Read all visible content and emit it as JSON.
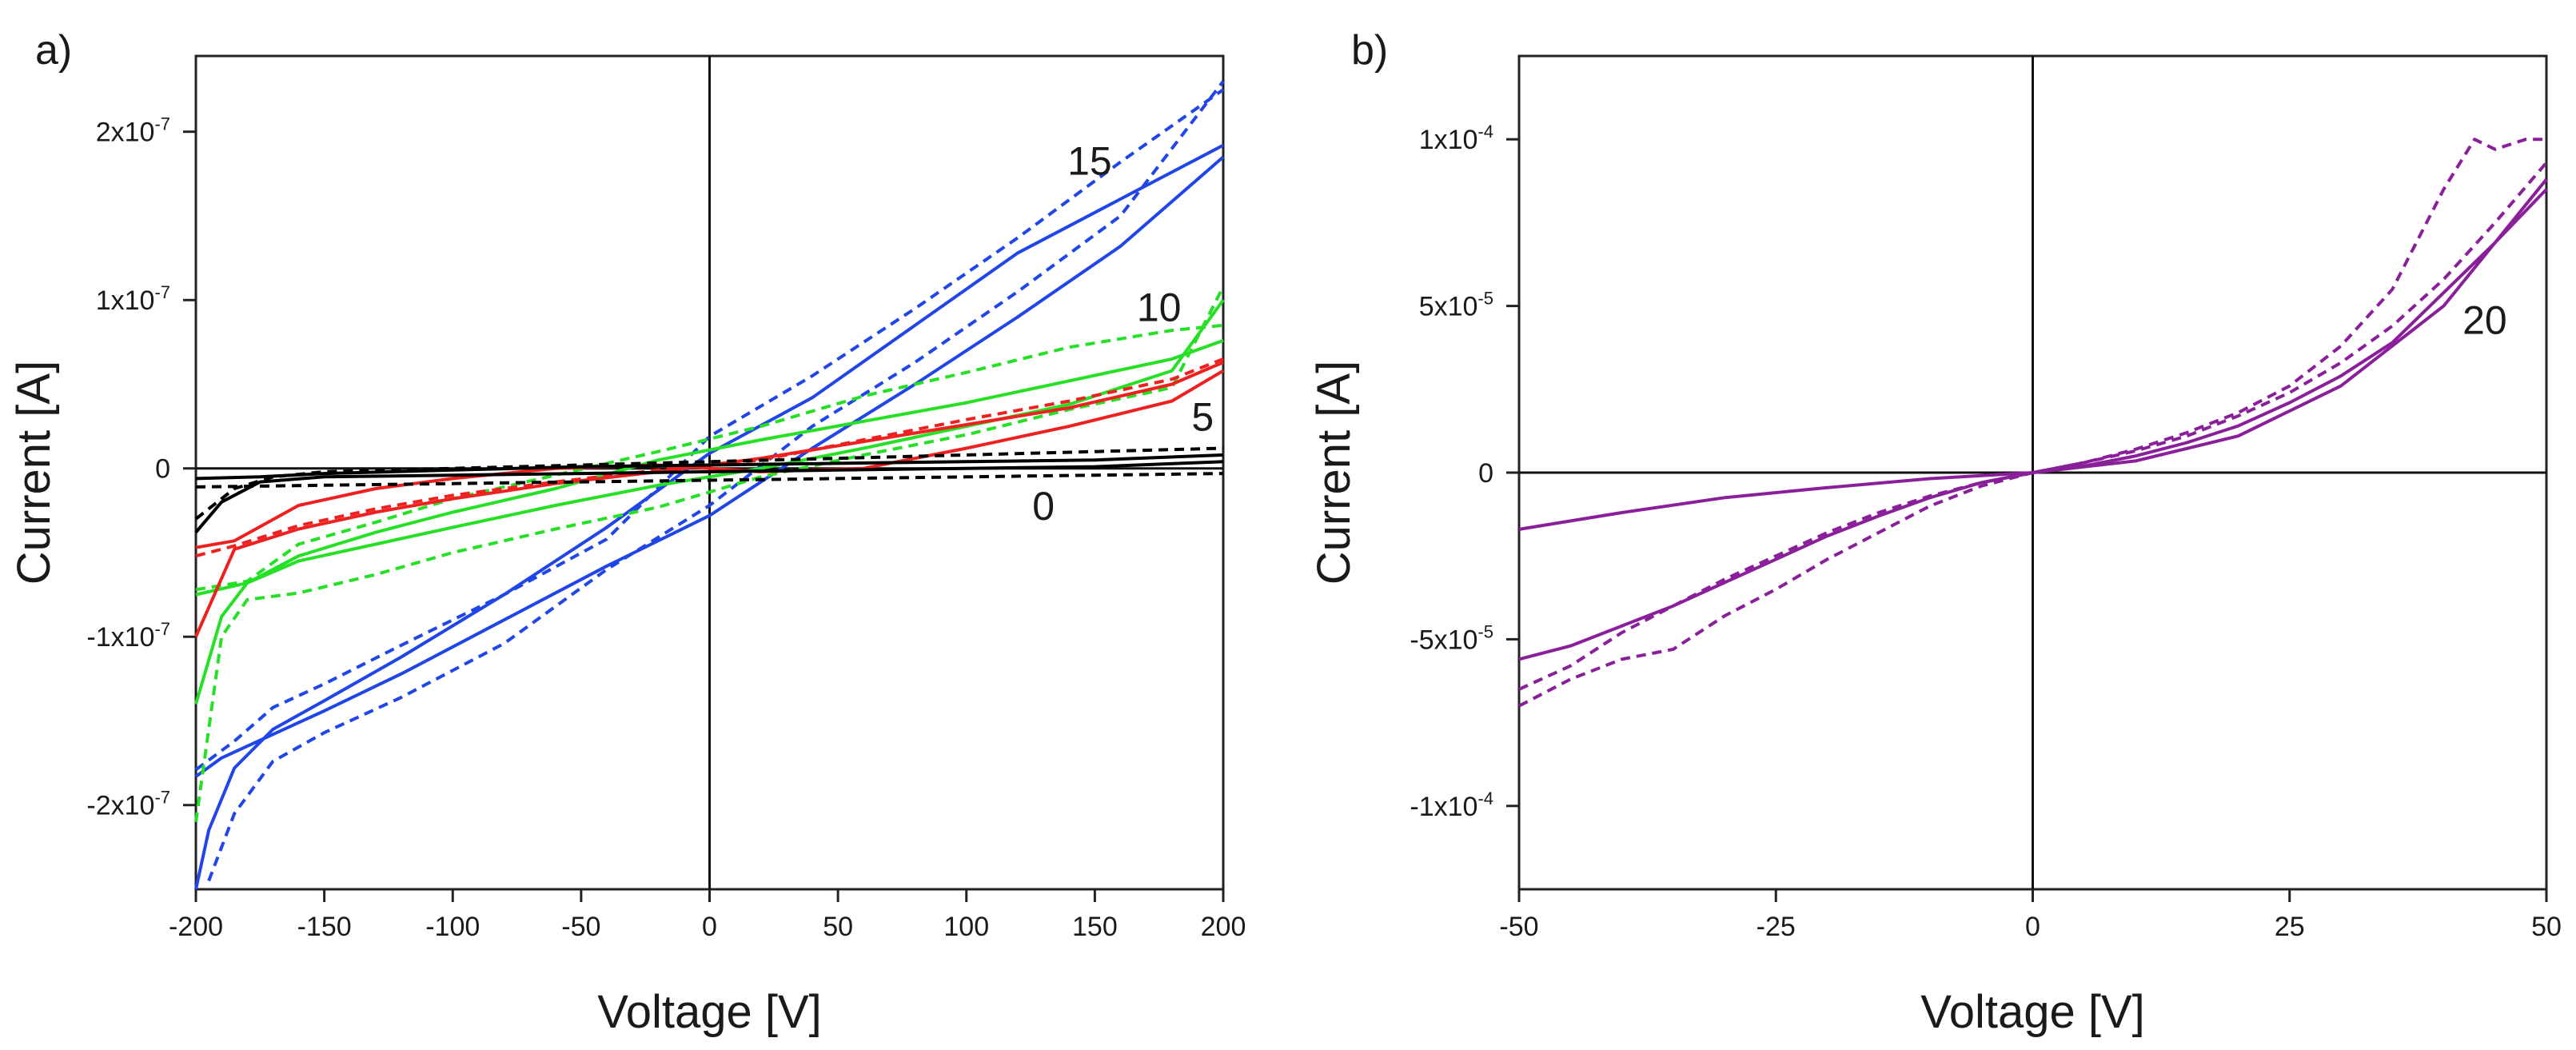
{
  "chart_data": [
    {
      "panel": "a)",
      "type": "line",
      "xlabel": "Voltage [V]",
      "ylabel": "Current [A]",
      "xlim": [
        -200,
        200
      ],
      "ylim": [
        -2.5e-07,
        2.45e-07
      ],
      "xticks": [
        -200,
        -150,
        -100,
        -50,
        0,
        50,
        100,
        150,
        200
      ],
      "yticks": [
        {
          "value": 2e-07,
          "mantissa": "2x10",
          "exp": "-7"
        },
        {
          "value": 1e-07,
          "mantissa": "1x10",
          "exp": "-7"
        },
        {
          "value": 0,
          "mantissa": "0",
          "exp": ""
        },
        {
          "value": -1e-07,
          "mantissa": "-1x10",
          "exp": "-7"
        },
        {
          "value": -2e-07,
          "mantissa": "-2x10",
          "exp": "-7"
        }
      ],
      "grid": false,
      "annotations": [
        {
          "text": "15",
          "x": 148,
          "y": 1.83e-07
        },
        {
          "text": "10",
          "x": 175,
          "y": 9.6e-08
        },
        {
          "text": "5",
          "x": 192,
          "y": 3.1e-08
        },
        {
          "text": "0",
          "x": 130,
          "y": -2.2e-08
        }
      ],
      "series": [
        {
          "color": "#2045e8",
          "style": "solid",
          "x": [
            -200,
            -190,
            -170,
            -150,
            -120,
            -80,
            -40,
            0,
            40,
            80,
            120,
            160,
            200
          ],
          "y": [
            -1.83e-07,
            -1.72e-07,
            -1.58e-07,
            -1.44e-07,
            -1.22e-07,
            -9e-08,
            -5.8e-08,
            -2.8e-08,
            1.2e-08,
            5e-08,
            9e-08,
            1.32e-07,
            1.85e-07
          ]
        },
        {
          "color": "#2045e8",
          "style": "solid",
          "x": [
            -200,
            -195,
            -185,
            -170,
            -150,
            -120,
            -80,
            -40,
            0,
            40,
            80,
            120,
            160,
            200
          ],
          "y": [
            -2.5e-07,
            -2.15e-07,
            -1.78e-07,
            -1.55e-07,
            -1.38e-07,
            -1.12e-07,
            -7.5e-08,
            -3.5e-08,
            9e-09,
            4.2e-08,
            8.5e-08,
            1.28e-07,
            1.6e-07,
            1.92e-07
          ]
        },
        {
          "color": "#2045e8",
          "style": "dashed",
          "x": [
            -195,
            -185,
            -170,
            -150,
            -120,
            -80,
            -40,
            0,
            40,
            80,
            120,
            160,
            200
          ],
          "y": [
            -2.45e-07,
            -2.05e-07,
            -1.74e-07,
            -1.57e-07,
            -1.36e-07,
            -1.04e-07,
            -6e-08,
            -2.2e-08,
            2.5e-08,
            6.3e-08,
            1.05e-07,
            1.5e-07,
            2.3e-07
          ]
        },
        {
          "color": "#2045e8",
          "style": "dashed",
          "x": [
            -200,
            -185,
            -170,
            -150,
            -120,
            -80,
            -40,
            0,
            40,
            80,
            120,
            160,
            200
          ],
          "y": [
            -1.79e-07,
            -1.62e-07,
            -1.42e-07,
            -1.28e-07,
            -1.05e-07,
            -7.5e-08,
            -4.2e-08,
            1.9e-08,
            5.5e-08,
            9.5e-08,
            1.37e-07,
            1.82e-07,
            2.25e-07
          ]
        },
        {
          "color": "#25e025",
          "style": "solid",
          "x": [
            -200,
            -190,
            -180,
            -160,
            -130,
            -100,
            -60,
            -20,
            20,
            60,
            100,
            140,
            180,
            200
          ],
          "y": [
            -1.4e-07,
            -8.8e-08,
            -6.8e-08,
            -5.5e-08,
            -4.5e-08,
            -3.5e-08,
            -2.2e-08,
            -1e-08,
            0,
            1.2e-08,
            2.5e-08,
            3.8e-08,
            5.8e-08,
            1e-07
          ]
        },
        {
          "color": "#25e025",
          "style": "solid",
          "x": [
            -200,
            -180,
            -160,
            -130,
            -100,
            -60,
            -20,
            20,
            60,
            100,
            140,
            180,
            200
          ],
          "y": [
            -7.5e-08,
            -6.8e-08,
            -5.2e-08,
            -3.8e-08,
            -2.6e-08,
            -1.2e-08,
            5e-09,
            1.7e-08,
            2.8e-08,
            3.9e-08,
            5.2e-08,
            6.5e-08,
            7.6e-08
          ]
        },
        {
          "color": "#25e025",
          "style": "dashed",
          "x": [
            -200,
            -190,
            -180,
            -160,
            -130,
            -100,
            -60,
            -20,
            20,
            60,
            100,
            140,
            180,
            200
          ],
          "y": [
            -2.1e-07,
            -1e-07,
            -7.8e-08,
            -7.4e-08,
            -6.3e-08,
            -5e-08,
            -3.6e-08,
            -2.3e-08,
            -5e-09,
            8e-09,
            2e-08,
            3.5e-08,
            4.8e-08,
            1.08e-07
          ]
        },
        {
          "color": "#25e025",
          "style": "dashed",
          "x": [
            -200,
            -180,
            -160,
            -130,
            -100,
            -60,
            -20,
            20,
            60,
            100,
            140,
            180,
            200
          ],
          "y": [
            -7.2e-08,
            -6.7e-08,
            -4.5e-08,
            -3.2e-08,
            -1.8e-08,
            -4e-09,
            1e-08,
            2.5e-08,
            4.3e-08,
            5.7e-08,
            7.2e-08,
            8.2e-08,
            8.5e-08
          ]
        },
        {
          "color": "#ee2020",
          "style": "solid",
          "x": [
            -200,
            -185,
            -160,
            -130,
            -100,
            -60,
            -20,
            20,
            60,
            100,
            140,
            180,
            200
          ],
          "y": [
            -1e-07,
            -4.8e-08,
            -3.6e-08,
            -2.6e-08,
            -1.8e-08,
            -9e-09,
            -2e-09,
            6e-09,
            1.6e-08,
            2.6e-08,
            3.6e-08,
            5e-08,
            6.3e-08
          ]
        },
        {
          "color": "#ee2020",
          "style": "solid",
          "x": [
            -200,
            -185,
            -160,
            -130,
            -100,
            -60,
            -20,
            20,
            60,
            100,
            140,
            180,
            200
          ],
          "y": [
            -4.7e-08,
            -4.3e-08,
            -2.2e-08,
            -1.2e-08,
            -6e-09,
            0,
            2e-09,
            -2e-09,
            0,
            1.2e-08,
            2.5e-08,
            4e-08,
            5.8e-08
          ]
        },
        {
          "color": "#ee2020",
          "style": "dashed",
          "x": [
            -200,
            -185,
            -160,
            -130,
            -100,
            -60,
            -20,
            20,
            60,
            100,
            140,
            180,
            200
          ],
          "y": [
            -5.2e-08,
            -4.6e-08,
            -3.4e-08,
            -2.4e-08,
            -1.6e-08,
            -8e-09,
            -1e-09,
            5e-09,
            1.7e-08,
            2.9e-08,
            4e-08,
            5.3e-08,
            6.5e-08
          ]
        },
        {
          "color": "#000000",
          "style": "solid",
          "x": [
            -200,
            -190,
            -175,
            -150,
            -100,
            -50,
            0,
            50,
            100,
            150,
            200
          ],
          "y": [
            -3.8e-08,
            -2e-08,
            -8e-09,
            -5e-09,
            -4e-09,
            -3e-09,
            -2e-09,
            -1e-09,
            0,
            1e-09,
            4e-09
          ]
        },
        {
          "color": "#000000",
          "style": "solid",
          "x": [
            -200,
            -175,
            -150,
            -100,
            -50,
            0,
            50,
            100,
            150,
            200
          ],
          "y": [
            -6e-09,
            -5e-09,
            -3e-09,
            -1e-09,
            1e-09,
            2e-09,
            3e-09,
            4e-09,
            5e-09,
            8e-09
          ]
        },
        {
          "color": "#000000",
          "style": "dashed",
          "x": [
            -200,
            -185,
            -170,
            -150,
            -100,
            -50,
            0,
            50,
            100,
            150,
            200
          ],
          "y": [
            -3e-08,
            -1.2e-08,
            -5e-09,
            -2e-09,
            0,
            2e-09,
            4e-09,
            6e-09,
            8e-09,
            1e-08,
            1.2e-08
          ]
        },
        {
          "color": "#000000",
          "style": "dashed",
          "x": [
            -200,
            -150,
            -100,
            -50,
            0,
            50,
            100,
            150,
            200
          ],
          "y": [
            -1.1e-08,
            -1e-08,
            -9e-09,
            -8e-09,
            -7e-09,
            -6e-09,
            -5e-09,
            -4e-09,
            -3e-09
          ]
        }
      ]
    },
    {
      "panel": "b)",
      "type": "line",
      "xlabel": "Voltage [V]",
      "ylabel": "Current [A]",
      "xlim": [
        -50,
        50
      ],
      "ylim": [
        -0.000125,
        0.000125
      ],
      "xticks": [
        -50,
        -25,
        0,
        25,
        50
      ],
      "yticks": [
        {
          "value": 0.0001,
          "mantissa": "1x10",
          "exp": "-4"
        },
        {
          "value": 5e-05,
          "mantissa": "5x10",
          "exp": "-5"
        },
        {
          "value": 0,
          "mantissa": "0",
          "exp": ""
        },
        {
          "value": -5e-05,
          "mantissa": "-5x10",
          "exp": "-5"
        },
        {
          "value": -0.0001,
          "mantissa": "-1x10",
          "exp": "-4"
        }
      ],
      "grid": false,
      "annotations": [
        {
          "text": "20",
          "x": 44,
          "y": 4.6e-05
        }
      ],
      "series": [
        {
          "color": "#8a1f9a",
          "style": "solid",
          "x": [
            -50,
            -40,
            -30,
            -20,
            -10,
            0,
            10,
            20,
            30,
            40,
            50
          ],
          "y": [
            -1.7e-05,
            -1.2e-05,
            -7.5e-06,
            -4.5e-06,
            -1.8e-06,
            0,
            3.5e-06,
            1.1e-05,
            2.6e-05,
            5e-05,
            8.8e-05
          ]
        },
        {
          "color": "#8a1f9a",
          "style": "solid",
          "x": [
            -50,
            -45,
            -40,
            -35,
            -30,
            -25,
            -20,
            -15,
            -10,
            -5,
            0,
            5,
            10,
            15,
            20,
            25,
            30,
            35,
            40,
            45,
            50
          ],
          "y": [
            -5.6e-05,
            -5.2e-05,
            -4.6e-05,
            -4e-05,
            -3.3e-05,
            -2.6e-05,
            -1.9e-05,
            -1.3e-05,
            -7.5e-06,
            -3e-06,
            0,
            2e-06,
            5e-06,
            9e-06,
            1.4e-05,
            2.1e-05,
            2.9e-05,
            3.9e-05,
            5.4e-05,
            6.9e-05,
            8.5e-05
          ]
        },
        {
          "color": "#8a1f9a",
          "style": "dashed",
          "x": [
            -50,
            -45,
            -40,
            -35,
            -30,
            -25,
            -20,
            -15,
            -10,
            -5,
            0,
            5,
            10,
            15,
            20,
            25,
            30,
            35,
            40,
            43,
            45,
            48,
            50
          ],
          "y": [
            -7e-05,
            -6.2e-05,
            -5.6e-05,
            -5.3e-05,
            -4.3e-05,
            -3.5e-05,
            -2.6e-05,
            -1.8e-05,
            -1e-05,
            -4e-06,
            0,
            3e-06,
            7e-06,
            1.2e-05,
            1.8e-05,
            2.6e-05,
            3.8e-05,
            5.5e-05,
            8.5e-05,
            0.0001,
            9.7e-05,
            0.0001,
            0.0001
          ]
        },
        {
          "color": "#8a1f9a",
          "style": "dashed",
          "x": [
            -50,
            -45,
            -40,
            -35,
            -30,
            -25,
            -20,
            -15,
            -10,
            -5,
            0,
            5,
            10,
            15,
            20,
            25,
            30,
            35,
            40,
            45,
            50
          ],
          "y": [
            -6.5e-05,
            -5.8e-05,
            -4.8e-05,
            -4e-05,
            -3.2e-05,
            -2.5e-05,
            -1.8e-05,
            -1.2e-05,
            -7e-06,
            -3e-06,
            0,
            3e-06,
            6.5e-06,
            1.1e-05,
            1.7e-05,
            2.4e-05,
            3.3e-05,
            4.4e-05,
            5.8e-05,
            7.5e-05,
            9.3e-05
          ]
        }
      ]
    }
  ]
}
